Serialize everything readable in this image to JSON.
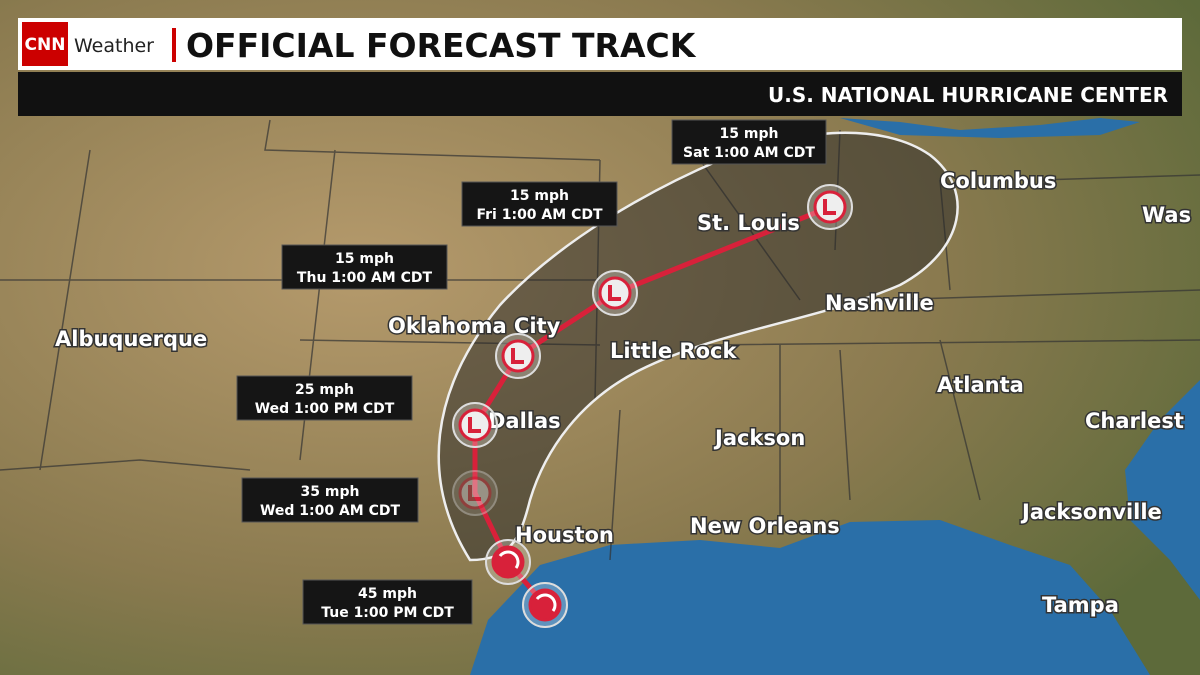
{
  "header": {
    "logo": "CNN",
    "brand": "Weather",
    "title": "OFFICIAL FORECAST TRACK",
    "source": "U.S. NATIONAL HURRICANE CENTER"
  },
  "cities": [
    "Columbus",
    "Was",
    "St. Louis",
    "Nashville",
    "Oklahoma City",
    "Albuquerque",
    "Little Rock",
    "Atlanta",
    "Charlest",
    "Dallas",
    "Jackson",
    "Houston",
    "New Orleans",
    "Jacksonville",
    "Tampa"
  ],
  "forecast_points": [
    {
      "speed": "45 mph",
      "time": "Tue 1:00 PM CDT"
    },
    {
      "speed": "35 mph",
      "time": "Wed 1:00 AM CDT"
    },
    {
      "speed": "25 mph",
      "time": "Wed 1:00 PM CDT"
    },
    {
      "speed": "15 mph",
      "time": "Thu 1:00 AM CDT"
    },
    {
      "speed": "15 mph",
      "time": "Fri 1:00 AM CDT"
    },
    {
      "speed": "15 mph",
      "time": "Sat 1:00 AM CDT"
    }
  ]
}
